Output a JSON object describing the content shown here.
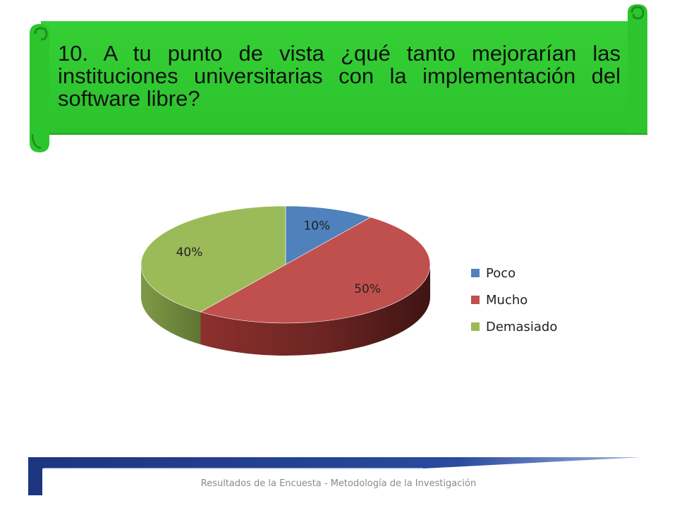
{
  "slide": {
    "question": "10. A tu punto de vista ¿qué tanto mejorarían las instituciones universitarias con la implementación del software libre?",
    "footer": "Resultados de la Encuesta - Metodología de la Investigación"
  },
  "colors": {
    "banner_green": "#33cc33",
    "banner_dark": "#1e8f1e",
    "footer_blue": "#1f3c8c"
  },
  "chart_data": {
    "type": "pie",
    "title": "",
    "three_d": true,
    "legend_position": "right",
    "slices": [
      {
        "name": "Poco",
        "value": 10,
        "label": "10%",
        "color": "#4f81bd"
      },
      {
        "name": "Mucho",
        "value": 50,
        "label": "50%",
        "color": "#c0504d"
      },
      {
        "name": "Demasiado",
        "value": 40,
        "label": "40%",
        "color": "#9bbb59"
      }
    ]
  }
}
